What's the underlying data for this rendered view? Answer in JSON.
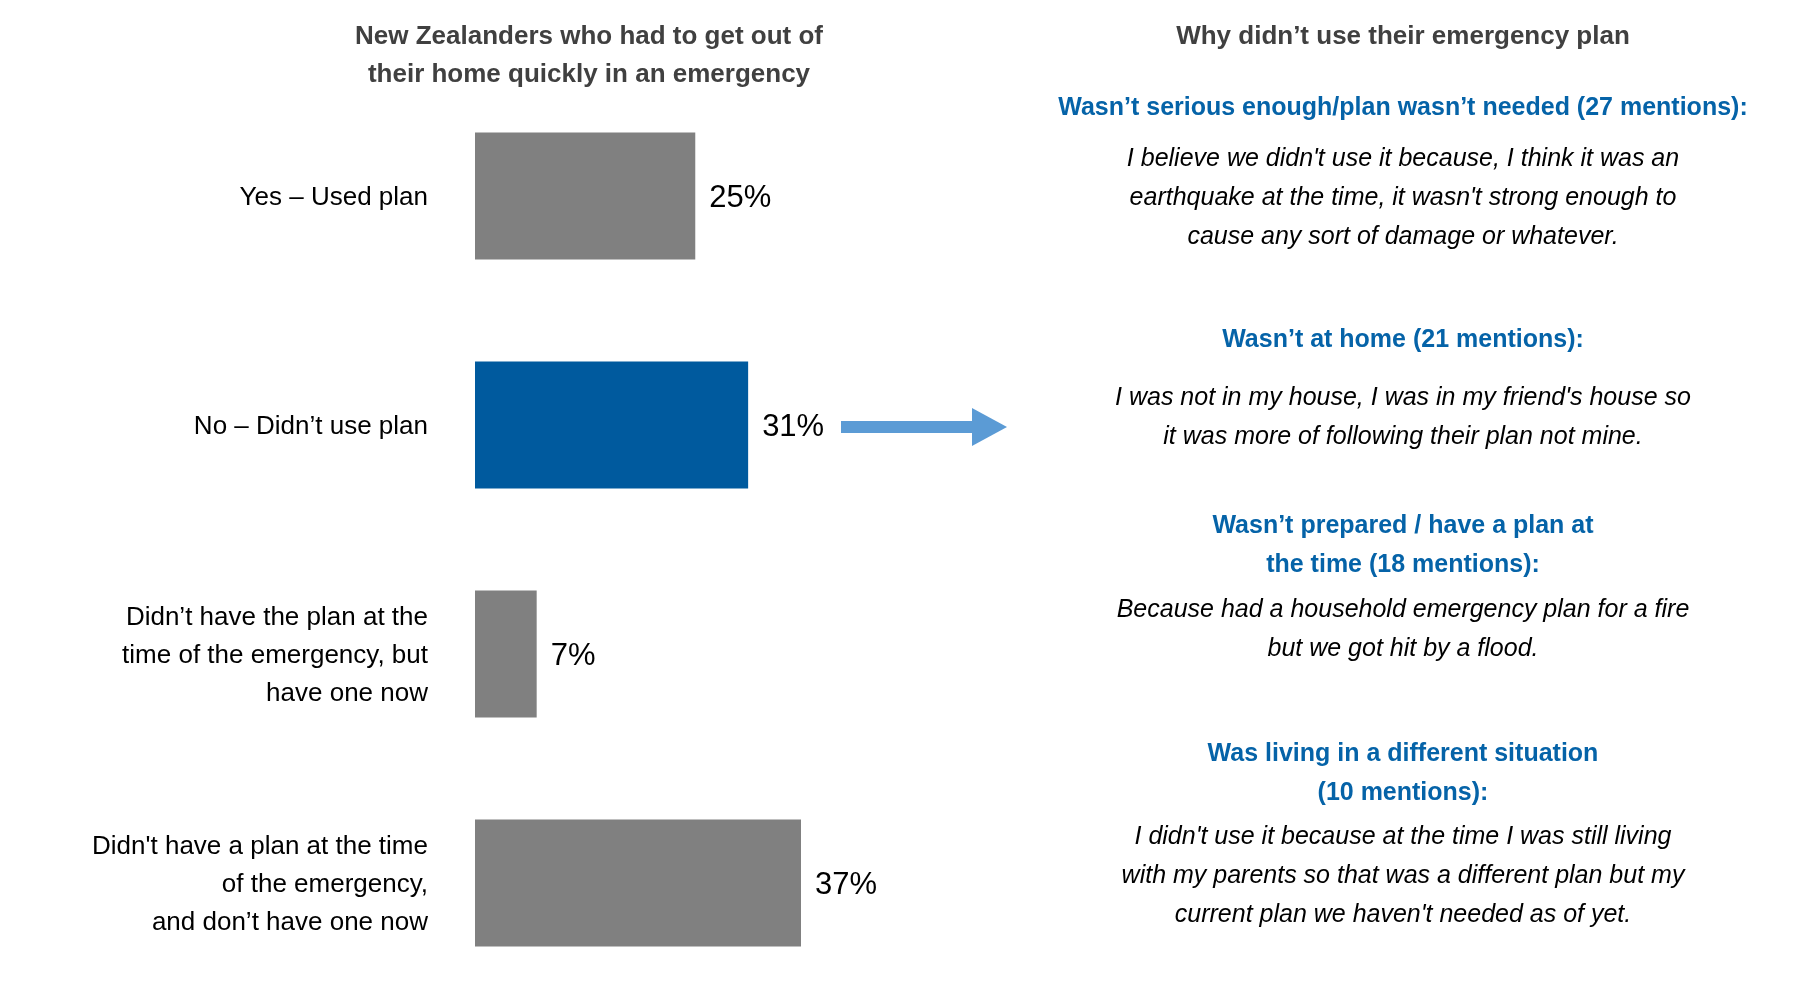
{
  "chart_data": [
    {
      "type": "bar",
      "orientation": "horizontal",
      "title": "New Zealanders who had to get out of\ntheir home quickly in an emergency",
      "categories": [
        "Yes – Used plan",
        "No – Didn’t use plan",
        "Didn’t have the plan at the\ntime of the emergency, but\nhave one now",
        "Didn't have a plan at the time\nof the emergency,\nand don’t have one now"
      ],
      "values": [
        25,
        31,
        7,
        37
      ],
      "colors": [
        "#808080",
        "#005a9e",
        "#808080",
        "#808080"
      ],
      "value_labels": [
        "25%",
        "31%",
        "7%",
        "37%"
      ]
    },
    {
      "type": "other",
      "title": "Why didn’t use their emergency plan",
      "annotations": [
        "Wasn’t serious enough/plan wasn’t needed  (27 mentions):",
        "I believe we didn't use it because, I think it was an\nearthquake at the time, it wasn't strong enough to\ncause any sort of damage or whatever.",
        "Wasn’t at home (21 mentions):",
        "I was not in my house, I was in my friend's house so\nit was more of following their plan not mine.",
        "Wasn’t prepared / have a plan at\nthe time (18 mentions):",
        "Because had a household emergency plan for a fire\nbut we got hit by a flood.",
        "Was living in a different situation\n(10 mentions):",
        "I didn't use it because at the time I was still living\nwith my parents so that was a different plan but my\ncurrent plan we haven't needed as of yet."
      ]
    }
  ]
}
